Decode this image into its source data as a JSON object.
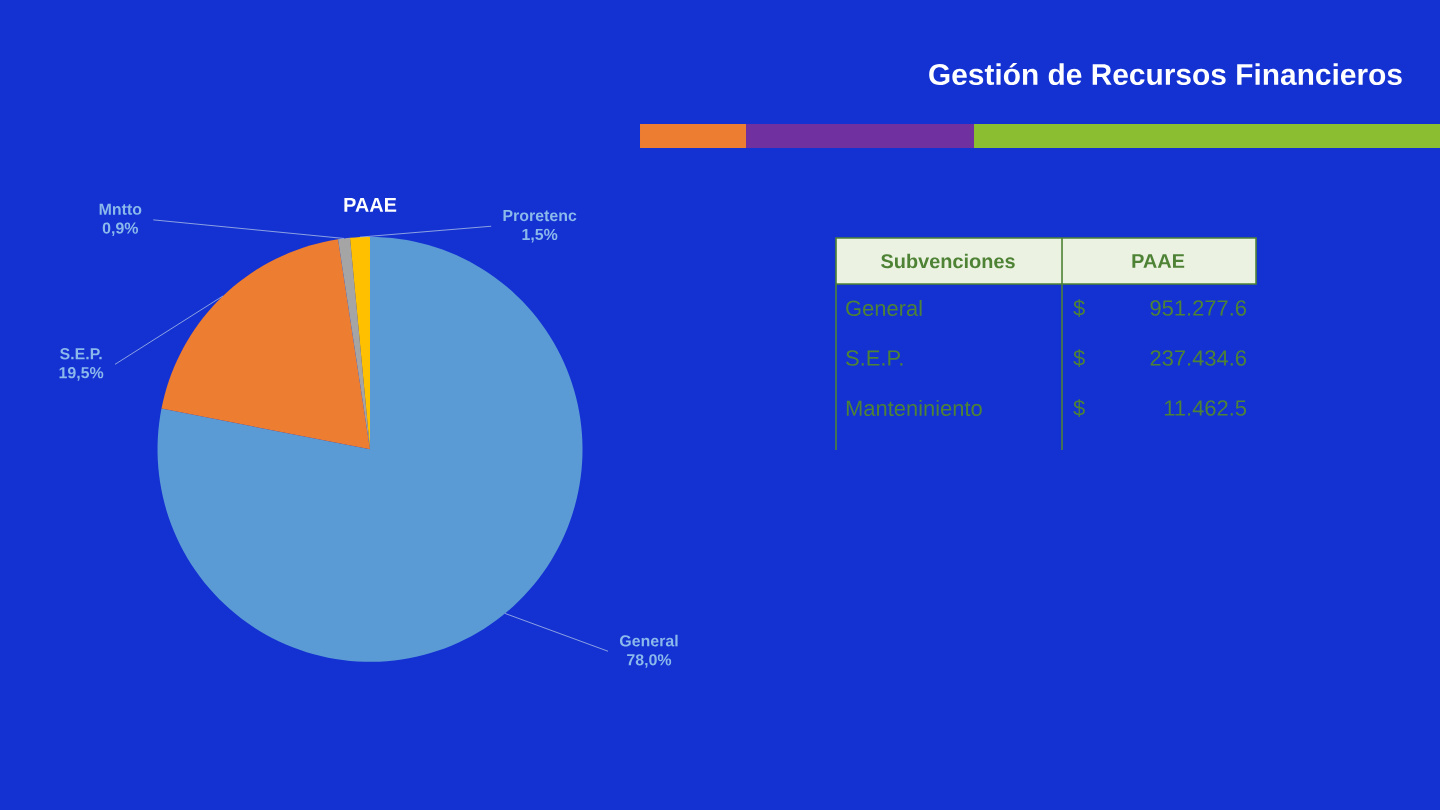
{
  "chart_data": [
    {
      "type": "pie",
      "title": "PAAE",
      "annotations": [
        "Gestión de Recursos Financieros"
      ],
      "categories": [
        "General",
        "S.E.P.",
        "Mntto",
        "Proretenc"
      ],
      "values": [
        78.0,
        19.5,
        0.9,
        1.5
      ],
      "value_labels": [
        "78,0%",
        "19,5%",
        "0,9%",
        "1,5%"
      ],
      "colors": [
        "#5b9bd5",
        "#ed7d31",
        "#a5a5a5",
        "#ffc000"
      ]
    },
    {
      "type": "other",
      "annotations": [
        "Subvenciones",
        "PAAE",
        "General",
        "$",
        "951.277.6",
        "S.E.P.",
        "$",
        "237.434.6",
        "Manteniniento",
        "$",
        "11.462.5"
      ]
    }
  ]
}
